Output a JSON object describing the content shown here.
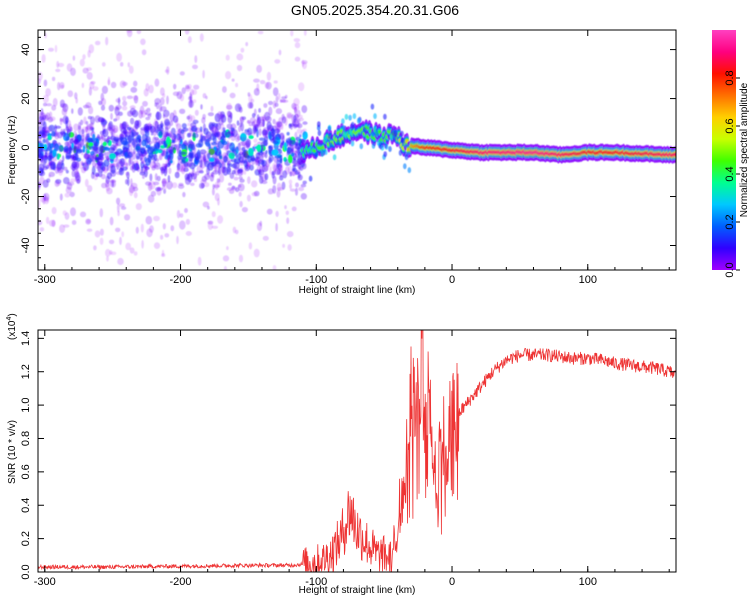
{
  "title": "GN05.2025.354.20.31.G06",
  "chart_data": [
    {
      "type": "heatmap",
      "xlabel": "Height of straight line (km)",
      "ylabel": "Frequency (Hz)",
      "xlim": [
        -305,
        165
      ],
      "ylim": [
        -50,
        48
      ],
      "xticks": [
        -300,
        -200,
        -100,
        0,
        100
      ],
      "yticks": [
        -40,
        -20,
        0,
        20,
        40
      ],
      "colorbar": {
        "label": "Normalized spectral amplitude",
        "range": [
          0,
          1
        ],
        "ticks": [
          "0.0",
          "0.2",
          "0.4",
          "0.6",
          "0.8"
        ],
        "colormap": [
          "#a000ff",
          "#3000ff",
          "#0060ff",
          "#00c8ff",
          "#00ff90",
          "#40ff00",
          "#c8ff00",
          "#ffd000",
          "#ff7000",
          "#ff1000",
          "#ff0080",
          "#ff40c0"
        ]
      },
      "ridge": {
        "description_points_x": [
          -110,
          -100,
          -90,
          -80,
          -70,
          -60,
          -50,
          -42,
          -35,
          -20,
          0,
          20,
          60,
          80,
          100,
          120,
          160
        ],
        "frequency_y": [
          -2,
          0,
          3,
          5,
          7,
          6,
          4,
          6,
          1,
          0,
          -1,
          -2,
          -2,
          -3,
          -2,
          -2,
          -3
        ],
        "peak_amplitude": [
          0.4,
          0.45,
          0.5,
          0.5,
          0.5,
          0.45,
          0.45,
          0.5,
          0.6,
          0.8,
          0.85,
          0.9,
          0.95,
          0.9,
          0.85,
          0.85,
          0.9
        ]
      }
    },
    {
      "type": "line",
      "xlabel": "Height of straight line (km)",
      "ylabel": "SNR (10 * v/v)",
      "scale_label": "(x10",
      "scale_exponent": "4",
      "xlim": [
        -305,
        165
      ],
      "ylim": [
        0,
        1.45
      ],
      "xticks": [
        -300,
        -200,
        -100,
        0,
        100
      ],
      "yticks": [
        "0.0",
        "0.2",
        "0.4",
        "0.6",
        "0.8",
        "1.0",
        "1.2",
        "1.4"
      ],
      "color": "#ee3333",
      "series": [
        {
          "x": [
            -305,
            -250,
            -200,
            -150,
            -120,
            -105,
            -95,
            -88,
            -82,
            -75,
            -70,
            -65,
            -60,
            -55,
            -50,
            -45,
            -40,
            -35,
            -32,
            -30,
            -28,
            -25,
            -22,
            -20,
            -18,
            -15,
            -12,
            -10,
            -5,
            0,
            5,
            10,
            20,
            30,
            40,
            50,
            60,
            70,
            80,
            90,
            100,
            110,
            120,
            130,
            140,
            150,
            160,
            165
          ],
          "y": [
            0.03,
            0.03,
            0.035,
            0.04,
            0.04,
            0.05,
            0.07,
            0.12,
            0.2,
            0.38,
            0.25,
            0.2,
            0.15,
            0.1,
            0.1,
            0.08,
            0.3,
            0.6,
            0.75,
            1.0,
            0.9,
            1.2,
            1.45,
            0.8,
            1.4,
            0.9,
            0.6,
            0.7,
            0.8,
            0.9,
            0.95,
            1.0,
            1.1,
            1.2,
            1.27,
            1.3,
            1.3,
            1.3,
            1.29,
            1.28,
            1.28,
            1.27,
            1.25,
            1.24,
            1.23,
            1.22,
            1.2,
            1.18
          ]
        }
      ]
    }
  ]
}
